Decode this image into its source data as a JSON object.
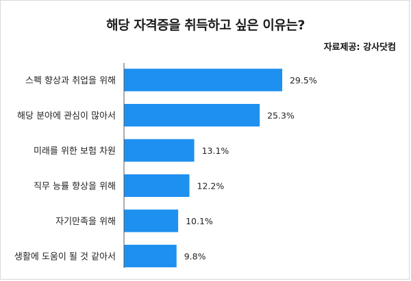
{
  "header": {
    "title": "해당 자격증을 취득하고 싶은 이유는?",
    "source": "자료제공: 강사닷컴"
  },
  "chart_data": {
    "type": "bar",
    "orientation": "horizontal",
    "title": "해당 자격증을 취득하고 싶은 이유는?",
    "xlabel": "",
    "ylabel": "",
    "categories": [
      "스펙 향상과 취업을 위해",
      "해당 분야에 관심이 많아서",
      "미래를 위한 보험 차원",
      "직무 능률 향상을 위해",
      "자기만족을 위해",
      "생활에 도움이 될 것 같아서"
    ],
    "values": [
      29.5,
      25.3,
      13.1,
      12.2,
      10.1,
      9.8
    ],
    "value_labels": [
      "29.5%",
      "25.3%",
      "13.1%",
      "12.2%",
      "10.1%",
      "9.8%"
    ],
    "unit": "%",
    "grid": false,
    "legend": "none",
    "bar_color": "#1e90f0"
  }
}
